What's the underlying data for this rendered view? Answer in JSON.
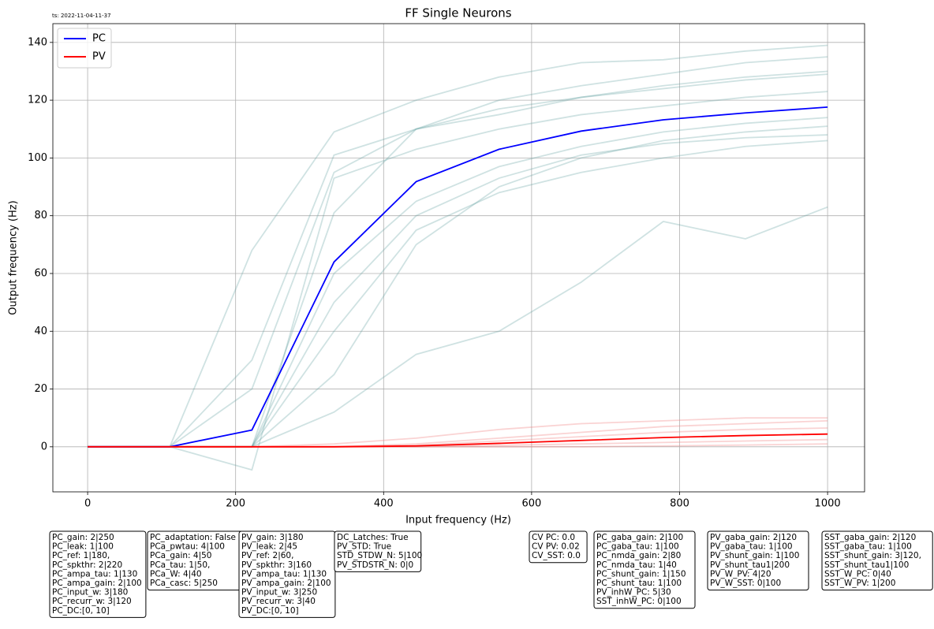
{
  "chart_data": {
    "type": "line",
    "title": "FF Single Neurons",
    "timestamp": "ts: 2022-11-04-11-37",
    "x_label": "Input frequency (Hz)",
    "y_label": "Output frequency (Hz)",
    "x": [
      0,
      111,
      222,
      333,
      444,
      556,
      667,
      778,
      889,
      1000
    ],
    "series": [
      {
        "name": "PC",
        "color": "#0000ff",
        "values": [
          0,
          0,
          5.8,
          64,
          91.8,
          103,
          109.3,
          113.2,
          115.6,
          117.6
        ]
      },
      {
        "name": "PV",
        "color": "#ff0000",
        "values": [
          0,
          0,
          0,
          0,
          0.3,
          1.2,
          2.2,
          3.2,
          3.9,
          4.4
        ]
      }
    ],
    "background": [
      {
        "color": "#5f9ea0",
        "values": [
          0,
          0,
          0,
          81,
          110,
          115,
          121,
          124,
          127,
          129
        ]
      },
      {
        "color": "#5f9ea0",
        "values": [
          0,
          0,
          0,
          60,
          85,
          97,
          104,
          109,
          112,
          114
        ]
      },
      {
        "color": "#5f9ea0",
        "values": [
          0,
          0,
          0,
          25,
          70,
          90,
          100,
          106,
          109,
          111
        ]
      },
      {
        "color": "#5f9ea0",
        "values": [
          0,
          0,
          68,
          109,
          120,
          128,
          133,
          134,
          137,
          139
        ]
      },
      {
        "color": "#5f9ea0",
        "values": [
          0,
          0,
          0,
          12,
          32,
          40,
          57,
          78,
          72,
          83
        ]
      },
      {
        "color": "#5f9ea0",
        "values": [
          0,
          0,
          20,
          95,
          110,
          117,
          121,
          125,
          128,
          130
        ]
      },
      {
        "color": "#5f9ea0",
        "values": [
          0,
          0,
          0,
          50,
          80,
          93,
          101,
          105,
          107,
          108
        ]
      },
      {
        "color": "#5f9ea0",
        "values": [
          0,
          0,
          -8,
          93,
          103,
          110,
          115,
          118,
          121,
          123
        ]
      },
      {
        "color": "#5f9ea0",
        "values": [
          0,
          0,
          0,
          40,
          75,
          88,
          95,
          100,
          104,
          106
        ]
      },
      {
        "color": "#5f9ea0",
        "values": [
          0,
          0,
          30,
          101,
          110,
          120,
          125,
          129,
          133,
          135
        ]
      },
      {
        "color": "#f08080",
        "values": [
          0,
          0,
          0,
          0,
          1,
          3,
          5,
          7,
          8,
          9
        ]
      },
      {
        "color": "#f08080",
        "values": [
          0,
          0,
          0,
          0,
          0,
          0.5,
          1,
          1.5,
          2,
          2.5
        ]
      },
      {
        "color": "#f08080",
        "values": [
          0,
          0,
          0,
          1,
          3,
          6,
          8,
          9,
          10,
          10
        ]
      },
      {
        "color": "#f08080",
        "values": [
          0,
          0,
          0,
          0,
          0.5,
          2,
          3.5,
          5,
          6,
          6.5
        ]
      },
      {
        "color": "#f08080",
        "values": [
          0,
          0,
          0,
          0,
          0,
          0,
          0,
          0.3,
          0.6,
          1
        ]
      }
    ],
    "xlim": [
      -47,
      1050
    ],
    "ylim": [
      -15.6,
      146.5
    ],
    "xticks": [
      0,
      200,
      400,
      600,
      800,
      1000
    ],
    "yticks": [
      0,
      20,
      40,
      60,
      80,
      100,
      120,
      140
    ],
    "grid": true,
    "legend": "upper left",
    "param_boxes": [
      [
        "PC_gain: 2|250",
        "PC_leak: 1|100",
        "PC_ref: 1|180,",
        "PC_spkthr: 2|220",
        "PC_ampa_tau: 1|130",
        "PC_ampa_gain: 2|100",
        "PC_input_w: 3|180",
        "PC_recurr_w: 3|120",
        "PC_DC:[0, 10]"
      ],
      [
        "PC_adaptation: False",
        "PCa_pwtau: 4|100",
        "PCa_gain: 4|50",
        "PCa_tau: 1|50,",
        "PCa_W: 4|40",
        "PCa_casc: 5|250"
      ],
      [
        "PV_gain: 3|180",
        "PV_leak: 2|45",
        "PV_ref: 2|60,",
        "PV_spkthr: 3|160",
        "PV_ampa_tau: 1|130",
        "PV_ampa_gain: 2|100",
        "PV_input_w: 3|250",
        "PV_recurr_w: 3|40",
        "PV_DC:[0, 10]"
      ],
      [
        "DC_Latches: True",
        "PV_STD: True",
        "STD_STDW_N: 5|100",
        "PV_STDSTR_N: 0|0"
      ],
      [
        "CV PC: 0.0",
        "CV PV: 0.02",
        "CV_SST: 0.0"
      ],
      [
        "PC_gaba_gain: 2|100",
        "PC_gaba_tau: 1|100",
        "PC_nmda_gain: 2|80",
        "PC_nmda_tau: 1|40",
        "PC_shunt_gain: 1|150",
        "PC_shunt_tau: 1|100",
        "PV_inhW_PC: 5|30",
        "SST_inhW_PC: 0|100"
      ],
      [
        "PV_gaba_gain: 2|120",
        "PV_gaba_tau: 1|100",
        "PV_shunt_gain: 1|100",
        "PV_shunt_tau1|200",
        "PV_W_PV: 4|20",
        "PV_W_SST: 0|100"
      ],
      [
        "SST_gaba_gain: 2|120",
        "SST_gaba_tau: 1|100",
        "SST_shunt_gain: 3|120,",
        "SST_shunt_tau1|100",
        "SST_W_PC: 0|40",
        "SST_W_PV: 1|200"
      ]
    ]
  }
}
